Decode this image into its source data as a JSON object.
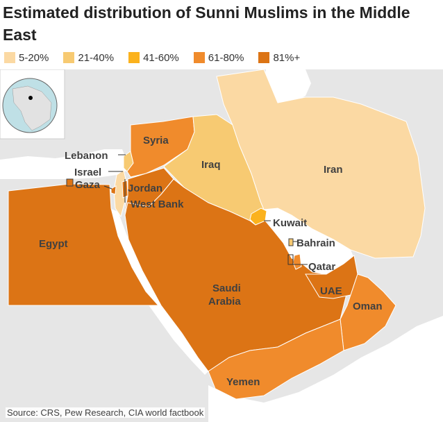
{
  "title": "Estimated distribution of Sunni Muslims in the Middle East",
  "legend": [
    {
      "label": "5-20%",
      "color": "#fbd9a3"
    },
    {
      "label": "21-40%",
      "color": "#f7ca72"
    },
    {
      "label": "41-60%",
      "color": "#fbb21d"
    },
    {
      "label": "61-80%",
      "color": "#f08b2c"
    },
    {
      "label": "81%+",
      "color": "#dc7415"
    }
  ],
  "countries": {
    "syria": {
      "label": "Syria",
      "band": "61-80%"
    },
    "lebanon": {
      "label": "Lebanon",
      "band": "21-40%"
    },
    "israel": {
      "label": "Israel",
      "band": "5-20%"
    },
    "gaza": {
      "label": "Gaza",
      "band": "81%+"
    },
    "jordan": {
      "label": "Jordan",
      "band": "81%+"
    },
    "west_bank": {
      "label": "West Bank",
      "band": "81%+"
    },
    "iraq": {
      "label": "Iraq",
      "band": "21-40%"
    },
    "iran": {
      "label": "Iran",
      "band": "5-20%"
    },
    "kuwait": {
      "label": "Kuwait",
      "band": "41-60%"
    },
    "bahrain": {
      "label": "Bahrain",
      "band": "21-40%"
    },
    "qatar": {
      "label": "Qatar",
      "band": "61-80%"
    },
    "uae": {
      "label": "UAE",
      "band": "81%+"
    },
    "oman": {
      "label": "Oman",
      "band": "61-80%"
    },
    "saudi_arabia": {
      "label_line1": "Saudi",
      "label_line2": "Arabia",
      "band": "81%+"
    },
    "yemen": {
      "label": "Yemen",
      "band": "61-80%"
    },
    "egypt": {
      "label": "Egypt",
      "band": "81%+"
    }
  },
  "colors": {
    "background_land": "#e6e6e6",
    "water": "#ffffff",
    "border": "#ffffff"
  },
  "source": "Source: CRS, Pew Research, CIA world factbook"
}
